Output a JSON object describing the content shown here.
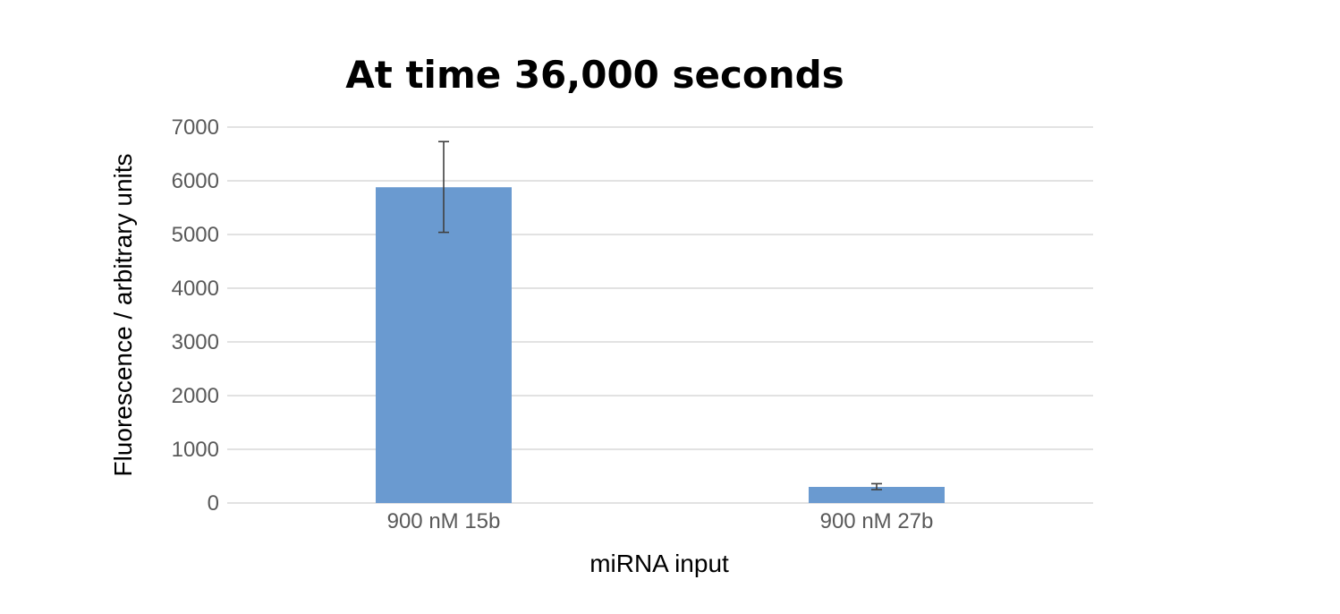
{
  "chart_data": {
    "type": "bar",
    "title": "At time 36,000 seconds",
    "xlabel": "miRNA input",
    "ylabel": "Fluorescence / arbitrary units",
    "categories": [
      "900 nM 15b",
      "900 nM 27b"
    ],
    "series": [
      {
        "values": [
          5880,
          300
        ],
        "error_low": [
          5040,
          250
        ],
        "error_high": [
          6730,
          360
        ],
        "color": "#6a9ad0"
      }
    ],
    "ylim": [
      0,
      7000
    ],
    "yticks": [
      "0",
      "1000",
      "2000",
      "3000",
      "4000",
      "5000",
      "6000",
      "7000"
    ],
    "grid": true,
    "legend": "none"
  }
}
